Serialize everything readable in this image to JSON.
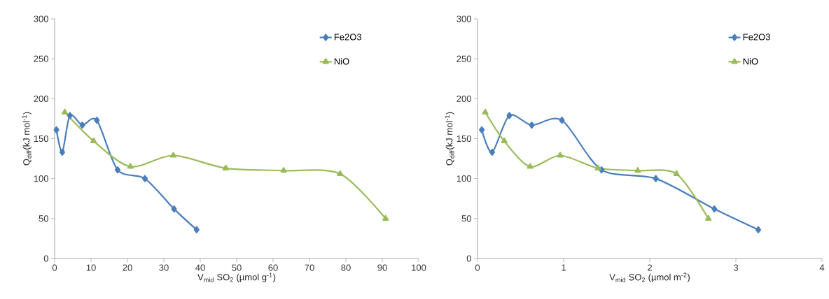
{
  "chart_data": [
    {
      "type": "line",
      "xlabel": "V$_{mid}$ SO$_{2}$ (µmol g$^{-1}$)",
      "ylabel": "Q$_{diff}$(kJ mol$^{-1}$)",
      "xlim": [
        0,
        100
      ],
      "ylim": [
        0,
        300
      ],
      "xticks": [
        0,
        10,
        20,
        30,
        40,
        50,
        60,
        70,
        80,
        90,
        100
      ],
      "yticks": [
        0,
        50,
        100,
        150,
        200,
        250,
        300
      ],
      "legend": "top right",
      "grid": false,
      "line_style": "solid",
      "series": [
        {
          "name": "Fe2O3",
          "color": "#4a7ebb",
          "marker": "diamond",
          "x": [
            0.5,
            2.1,
            4.2,
            7.6,
            11.6,
            17.3,
            24.8,
            32.8,
            39.0
          ],
          "values": [
            161,
            133,
            179,
            167,
            173,
            111,
            100,
            62,
            36
          ]
        },
        {
          "name": "NiO",
          "color": "#9bbb59",
          "marker": "triangle",
          "x": [
            2.8,
            10.7,
            20.8,
            32.6,
            47.0,
            62.9,
            78.4,
            90.9
          ],
          "values": [
            183,
            147,
            115,
            129,
            113,
            110,
            106,
            50
          ]
        }
      ]
    },
    {
      "type": "line",
      "xlabel": "V$_{mid}$ SO$_{2}$ (µmol m$^{-2}$)",
      "ylabel": "Q$_{diff}$(kJ mol$^{-1}$)",
      "xlim": [
        0,
        4
      ],
      "ylim": [
        0,
        300
      ],
      "xticks": [
        0,
        1,
        2,
        3,
        4
      ],
      "yticks": [
        0,
        50,
        100,
        150,
        200,
        250,
        300
      ],
      "legend": "top right",
      "grid": false,
      "line_style": "solid",
      "series": [
        {
          "name": "Fe2O3",
          "color": "#4a7ebb",
          "marker": "diamond",
          "x": [
            0.05,
            0.17,
            0.37,
            0.63,
            0.98,
            1.44,
            2.07,
            2.75,
            3.26
          ],
          "values": [
            161,
            133,
            179,
            167,
            173,
            111,
            100,
            62,
            36
          ]
        },
        {
          "name": "NiO",
          "color": "#9bbb59",
          "marker": "triangle",
          "x": [
            0.09,
            0.31,
            0.61,
            0.96,
            1.4,
            1.86,
            2.31,
            2.68
          ],
          "values": [
            183,
            147,
            115,
            129,
            113,
            110,
            106,
            50
          ]
        }
      ]
    }
  ]
}
